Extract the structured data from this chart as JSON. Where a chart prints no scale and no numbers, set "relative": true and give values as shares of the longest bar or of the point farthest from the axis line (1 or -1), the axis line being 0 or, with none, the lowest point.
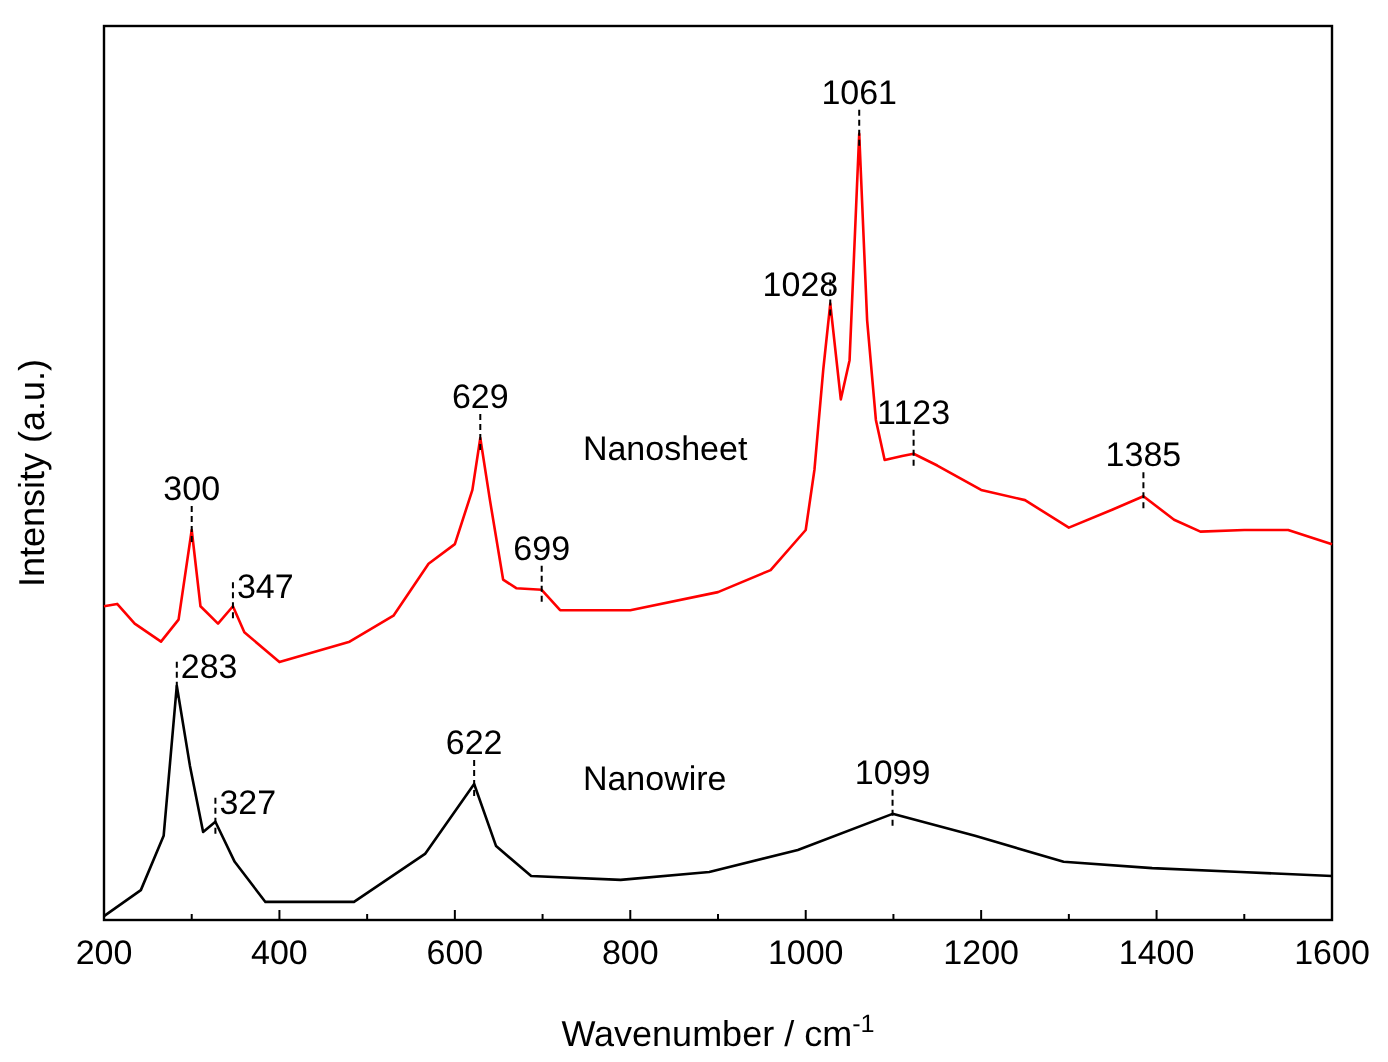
{
  "chart_data": {
    "type": "line",
    "relative": true,
    "xlabel": "Wavenumber / cm$^{-1}$",
    "ylabel": "Intensity (a.u.)",
    "xlim": [
      200,
      1600
    ],
    "xticks": [
      200,
      {
        "value": 300,
        "label": null
      },
      400,
      {
        "value": 500,
        "label": null
      },
      600,
      {
        "value": 700,
        "label": null
      },
      800,
      {
        "value": 900,
        "label": null
      },
      1000,
      {
        "value": 1100,
        "label": null
      },
      1200,
      {
        "value": 1300,
        "label": null
      },
      1400,
      {
        "value": 1500,
        "label": null
      },
      1600
    ],
    "line_style": "solid",
    "series": [
      {
        "name": "Nanosheet",
        "color": "#ff0000",
        "x": [
          200,
          215,
          235,
          265,
          285,
          300,
          310,
          330,
          347,
          360,
          400,
          480,
          530,
          570,
          600,
          620,
          629,
          640,
          655,
          670,
          699,
          720,
          800,
          900,
          960,
          1000,
          1010,
          1020,
          1028,
          1040,
          1050,
          1061,
          1070,
          1080,
          1090,
          1110,
          1123,
          1150,
          1200,
          1250,
          1300,
          1350,
          1385,
          1420,
          1450,
          1500,
          1550,
          1600
        ],
        "values": [
          0.399,
          0.402,
          0.377,
          0.354,
          0.382,
          0.496,
          0.399,
          0.377,
          0.399,
          0.366,
          0.328,
          0.354,
          0.387,
          0.453,
          0.478,
          0.547,
          0.613,
          0.534,
          0.433,
          0.422,
          0.42,
          0.394,
          0.394,
          0.417,
          0.445,
          0.496,
          0.573,
          0.7,
          0.784,
          0.662,
          0.712,
          1,
          0.763,
          0.636,
          0.585,
          0.59,
          0.593,
          0.578,
          0.547,
          0.534,
          0.499,
          0.522,
          0.539,
          0.509,
          0.494,
          0.496,
          0.496,
          0.478
        ]
      },
      {
        "name": "Nanowire",
        "color": "#000000",
        "x": [
          200,
          242,
          268,
          283,
          298,
          313,
          327,
          349,
          384,
          485,
          566,
          622,
          647,
          687,
          789,
          890,
          991,
          1099,
          1193,
          1294,
          1395,
          1496,
          1600
        ],
        "values": [
          0.005,
          0.038,
          0.107,
          0.298,
          0.196,
          0.112,
          0.125,
          0.074,
          0.023,
          0.023,
          0.084,
          0.173,
          0.094,
          0.056,
          0.051,
          0.061,
          0.089,
          0.135,
          0.107,
          0.074,
          0.066,
          0.061,
          0.056
        ]
      }
    ],
    "annotations": [
      {
        "text": "300",
        "x": 300,
        "y": 0.496
      },
      {
        "text": "347",
        "x": 347,
        "y": 0.399
      },
      {
        "text": "629",
        "x": 629,
        "y": 0.613
      },
      {
        "text": "699",
        "x": 699,
        "y": 0.42
      },
      {
        "text": "1028",
        "x": 1028,
        "y": 0.784
      },
      {
        "text": "1061",
        "x": 1061,
        "y": 1
      },
      {
        "text": "1123",
        "x": 1123,
        "y": 0.593
      },
      {
        "text": "1385",
        "x": 1385,
        "y": 0.539
      },
      {
        "text": "283",
        "x": 283,
        "y": 0.298
      },
      {
        "text": "327",
        "x": 327,
        "y": 0.125
      },
      {
        "text": "622",
        "x": 622,
        "y": 0.173
      },
      {
        "text": "1099",
        "x": 1099,
        "y": 0.135
      }
    ]
  }
}
